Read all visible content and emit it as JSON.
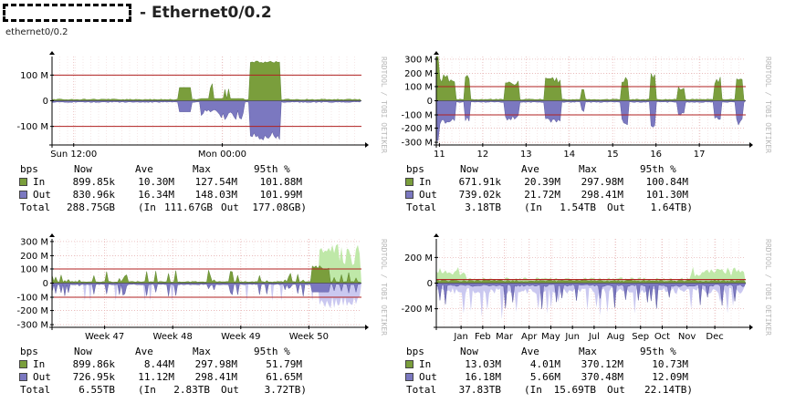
{
  "header": {
    "title": "- Ethernet0/0.2",
    "subtitle": "ethernet0/0.2"
  },
  "credit": "RRDTOOL / TOBI OETIKER",
  "colors": {
    "in": "#7a9e3c",
    "out": "#7b78c0",
    "in_light": "#bfe8a8",
    "out_light": "#cac8f0",
    "limit": "#b02020"
  },
  "legend_headers": [
    "bps",
    "Now",
    "Ave",
    "Max",
    "95th %"
  ],
  "panels": [
    {
      "id": "daily",
      "y_ticks": [
        "100 M",
        "0",
        "-100 M"
      ],
      "x_ticks": [
        "Sun 12:00",
        "Mon 00:00"
      ],
      "legend": {
        "in": {
          "label": "In",
          "now": "899.85k",
          "ave": "10.30M",
          "max": "127.54M",
          "p95": "101.88M"
        },
        "out": {
          "label": "Out",
          "now": "830.96k",
          "ave": "16.34M",
          "max": "148.03M",
          "p95": "101.99M"
        },
        "total": {
          "label": "Total",
          "value": "288.75GB",
          "in_label": "(In",
          "in_value": "111.67GB",
          "out_label": "Out",
          "out_value": "177.08GB)"
        }
      }
    },
    {
      "id": "weekly",
      "y_ticks": [
        "300 M",
        "200 M",
        "100 M",
        "0",
        "-100 M",
        "-200 M",
        "-300 M"
      ],
      "x_ticks": [
        "11",
        "12",
        "13",
        "14",
        "15",
        "16",
        "17"
      ],
      "legend": {
        "in": {
          "label": "In",
          "now": "671.91k",
          "ave": "20.39M",
          "max": "297.98M",
          "p95": "100.84M"
        },
        "out": {
          "label": "Out",
          "now": "739.02k",
          "ave": "21.72M",
          "max": "298.41M",
          "p95": "101.30M"
        },
        "total": {
          "label": "Total",
          "value": "3.18TB",
          "in_label": "(In",
          "in_value": "1.54TB",
          "out_label": "Out",
          "out_value": "1.64TB)"
        }
      }
    },
    {
      "id": "monthly",
      "y_ticks": [
        "300 M",
        "200 M",
        "100 M",
        "0",
        "-100 M",
        "-200 M",
        "-300 M"
      ],
      "x_ticks": [
        "Week 47",
        "Week 48",
        "Week 49",
        "Week 50"
      ],
      "legend": {
        "in": {
          "label": "In",
          "now": "899.86k",
          "ave": "8.44M",
          "max": "297.98M",
          "p95": "51.79M"
        },
        "out": {
          "label": "Out",
          "now": "726.95k",
          "ave": "11.12M",
          "max": "298.41M",
          "p95": "61.65M"
        },
        "total": {
          "label": "Total",
          "value": "6.55TB",
          "in_label": "(In",
          "in_value": "2.83TB",
          "out_label": "Out",
          "out_value": "3.72TB)"
        }
      }
    },
    {
      "id": "yearly",
      "y_ticks": [
        "200 M",
        "0",
        "-200 M"
      ],
      "x_ticks": [
        "Jan",
        "Feb",
        "Mar",
        "Apr",
        "May",
        "Jun",
        "Jul",
        "Aug",
        "Sep",
        "Oct",
        "Nov",
        "Dec"
      ],
      "legend": {
        "in": {
          "label": "In",
          "now": "13.03M",
          "ave": "4.01M",
          "max": "370.12M",
          "p95": "10.73M"
        },
        "out": {
          "label": "Out",
          "now": "16.18M",
          "ave": "5.66M",
          "max": "370.48M",
          "p95": "12.09M"
        },
        "total": {
          "label": "Total",
          "value": "37.83TB",
          "in_label": "(In",
          "in_value": "15.69TB",
          "out_label": "Out",
          "out_value": "22.14TB)"
        }
      }
    }
  ]
}
